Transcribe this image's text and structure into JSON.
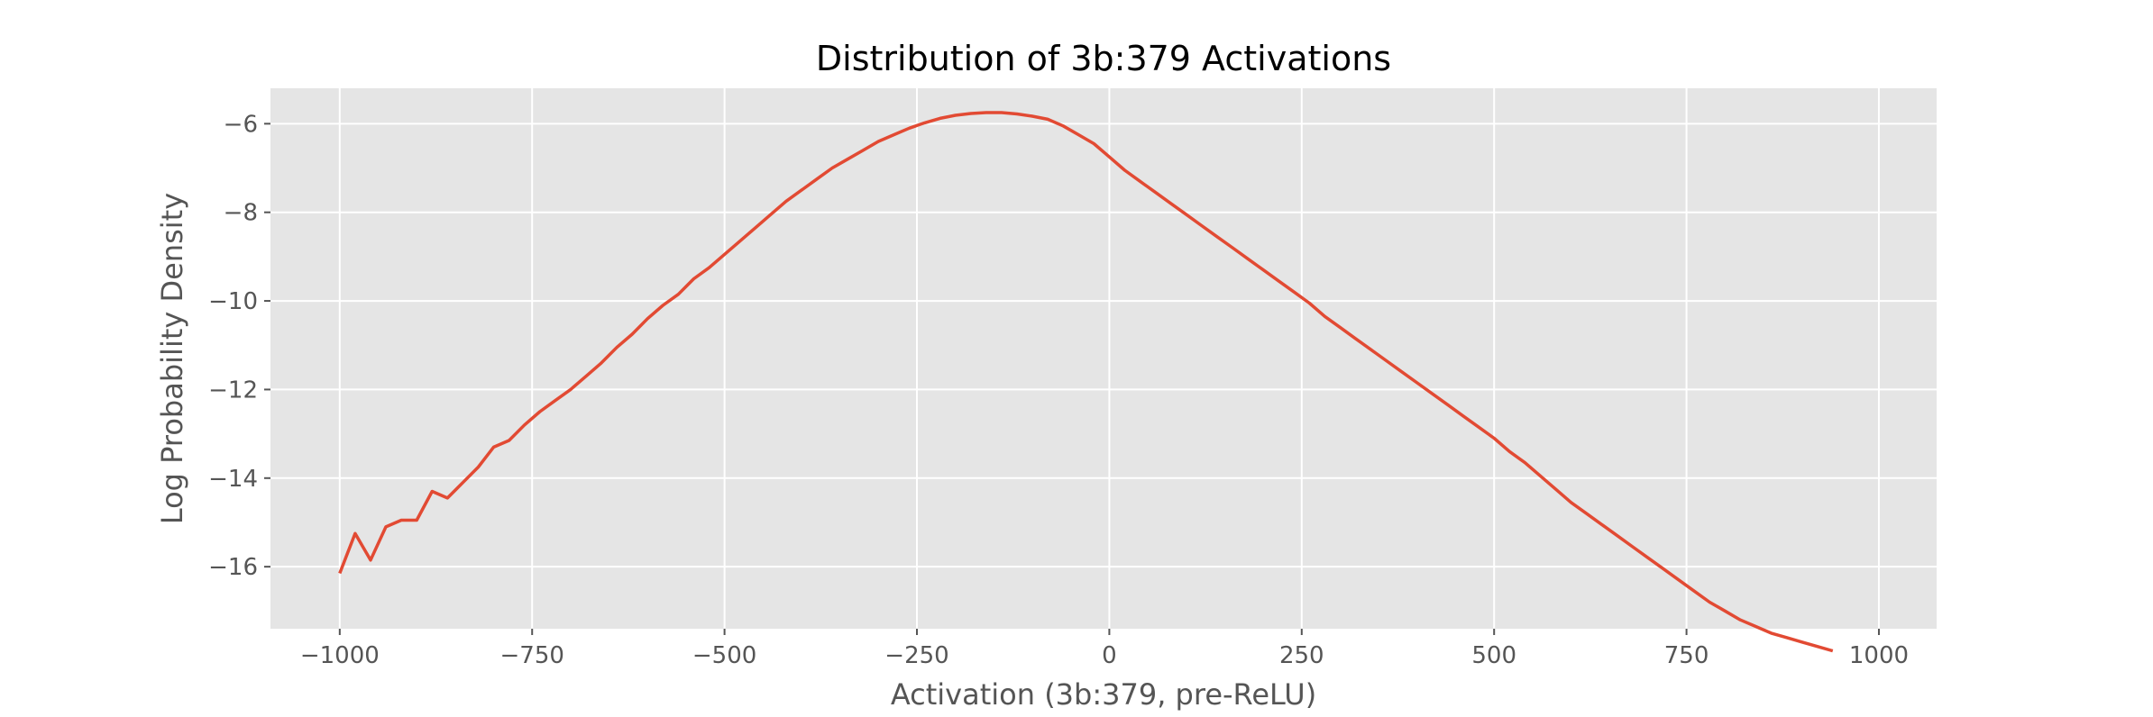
{
  "chart_data": {
    "type": "line",
    "title": "Distribution of 3b:379 Activations",
    "xlabel": "Activation (3b:379, pre-ReLU)",
    "ylabel": "Log Probability Density",
    "xlim": [
      -1090,
      1075
    ],
    "ylim": [
      -17.4,
      -5.2
    ],
    "xticks": [
      -1000,
      -750,
      -500,
      -250,
      0,
      250,
      500,
      750,
      1000
    ],
    "xtick_labels": [
      "−1000",
      "−750",
      "−500",
      "−250",
      "0",
      "250",
      "500",
      "750",
      "1000"
    ],
    "yticks": [
      -6,
      -8,
      -10,
      -12,
      -14,
      -16
    ],
    "ytick_labels": [
      "−6",
      "−8",
      "−10",
      "−12",
      "−14",
      "−16"
    ],
    "grid": true,
    "background_color": "#e5e5e5",
    "grid_color": "#ffffff",
    "line_color": "#e24a33",
    "series": [
      {
        "x": [
          -1000,
          -980,
          -960,
          -940,
          -920,
          -900,
          -880,
          -860,
          -840,
          -820,
          -800,
          -780,
          -760,
          -740,
          -720,
          -700,
          -680,
          -660,
          -640,
          -620,
          -600,
          -580,
          -560,
          -540,
          -520,
          -500,
          -480,
          -460,
          -440,
          -420,
          -400,
          -380,
          -360,
          -340,
          -320,
          -300,
          -280,
          -260,
          -240,
          -220,
          -200,
          -180,
          -160,
          -140,
          -120,
          -100,
          -80,
          -60,
          -40,
          -20,
          0,
          20,
          40,
          60,
          80,
          100,
          120,
          140,
          160,
          180,
          200,
          220,
          240,
          260,
          280,
          300,
          320,
          340,
          360,
          380,
          400,
          420,
          440,
          460,
          480,
          500,
          520,
          540,
          560,
          580,
          600,
          620,
          640,
          660,
          680,
          700,
          720,
          740,
          760,
          780,
          800,
          820,
          840,
          860,
          880,
          900,
          920,
          940
        ],
        "y": [
          -16.15,
          -15.25,
          -15.85,
          -15.1,
          -14.95,
          -14.95,
          -14.3,
          -14.45,
          -14.1,
          -13.75,
          -13.3,
          -13.15,
          -12.8,
          -12.5,
          -12.25,
          -12.0,
          -11.7,
          -11.4,
          -11.05,
          -10.75,
          -10.4,
          -10.1,
          -9.85,
          -9.5,
          -9.25,
          -8.95,
          -8.65,
          -8.35,
          -8.05,
          -7.75,
          -7.5,
          -7.25,
          -7.0,
          -6.8,
          -6.6,
          -6.4,
          -6.25,
          -6.1,
          -5.98,
          -5.88,
          -5.81,
          -5.77,
          -5.75,
          -5.75,
          -5.78,
          -5.83,
          -5.9,
          -6.05,
          -6.25,
          -6.45,
          -6.75,
          -7.05,
          -7.3,
          -7.55,
          -7.8,
          -8.05,
          -8.3,
          -8.55,
          -8.8,
          -9.05,
          -9.3,
          -9.55,
          -9.8,
          -10.05,
          -10.35,
          -10.6,
          -10.85,
          -11.1,
          -11.35,
          -11.6,
          -11.85,
          -12.1,
          -12.35,
          -12.6,
          -12.85,
          -13.1,
          -13.4,
          -13.65,
          -13.95,
          -14.25,
          -14.55,
          -14.8,
          -15.05,
          -15.3,
          -15.55,
          -15.8,
          -16.05,
          -16.3,
          -16.55,
          -16.8,
          -17.0,
          -17.2,
          -17.35,
          -17.5,
          -17.6,
          -17.7,
          -17.8,
          -17.9
        ]
      }
    ]
  }
}
